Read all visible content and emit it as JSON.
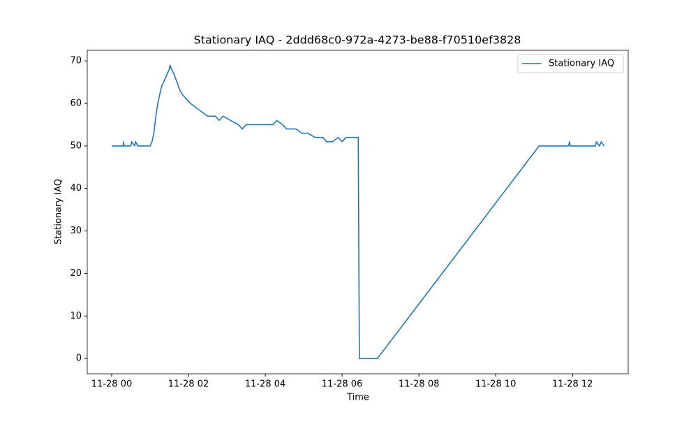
{
  "chart_data": {
    "type": "line",
    "title": "Stationary IAQ - 2ddd68c0-972a-4273-be88-f70510ef3828",
    "x_label": "Time",
    "y_label": "Stationary IAQ",
    "x": [
      0,
      0.3,
      0.31,
      0.32,
      0.5,
      0.52,
      0.6,
      0.62,
      0.68,
      1.0,
      1.05,
      1.1,
      1.15,
      1.2,
      1.25,
      1.3,
      1.35,
      1.4,
      1.45,
      1.5,
      1.52,
      1.56,
      1.62,
      1.7,
      1.78,
      1.85,
      1.95,
      2.05,
      2.2,
      2.35,
      2.5,
      2.7,
      2.8,
      2.9,
      3.1,
      3.3,
      3.4,
      3.5,
      3.7,
      4.0,
      4.2,
      4.3,
      4.45,
      4.55,
      4.8,
      4.95,
      5.1,
      5.3,
      5.5,
      5.6,
      5.75,
      5.9,
      6.0,
      6.1,
      6.3,
      6.42,
      6.45,
      6.92,
      11.13,
      11.9,
      11.92,
      11.94,
      12.6,
      12.62,
      12.7,
      12.75,
      12.82
    ],
    "series": [
      {
        "name": "Stationary IAQ",
        "color": "#1f77b4",
        "values": [
          50,
          50,
          51,
          50,
          50,
          51,
          50,
          51,
          50,
          50,
          51,
          53,
          57,
          60,
          62,
          64,
          65,
          66,
          67,
          68,
          69,
          68,
          67,
          65,
          63,
          62,
          61,
          60,
          59,
          58,
          57,
          57,
          56,
          57,
          56,
          55,
          54,
          55,
          55,
          55,
          55,
          56,
          55,
          54,
          54,
          53,
          53,
          52,
          52,
          51,
          51,
          52,
          51,
          52,
          52,
          52,
          0,
          0,
          50,
          50,
          51,
          50,
          50,
          51,
          50,
          51,
          50
        ]
      }
    ],
    "xlim": [
      -0.636,
      13.45
    ],
    "xticks": [
      {
        "value": 0,
        "label": "11-28 00"
      },
      {
        "value": 2,
        "label": "11-28 02"
      },
      {
        "value": 4,
        "label": "11-28 04"
      },
      {
        "value": 6,
        "label": "11-28 06"
      },
      {
        "value": 8,
        "label": "11-28 08"
      },
      {
        "value": 10,
        "label": "11-28 10"
      },
      {
        "value": 12,
        "label": "11-28 12"
      }
    ],
    "ylim": [
      -3.6,
      72.5
    ],
    "yticks": [
      0,
      10,
      20,
      30,
      40,
      50,
      60,
      70
    ],
    "legend": "upper right"
  }
}
